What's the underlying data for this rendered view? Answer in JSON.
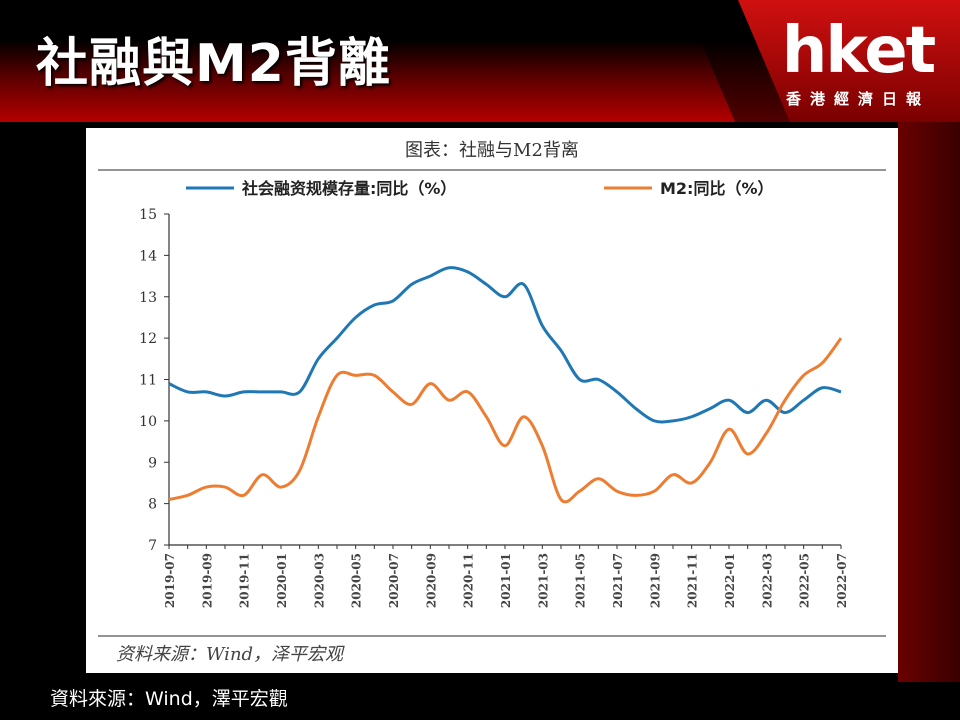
{
  "slide": {
    "title": "社融與M2背離",
    "source_caption": "資料來源：Wind，澤平宏觀"
  },
  "logo": {
    "wordmark": "hket",
    "subtitle": "香港經濟日報"
  },
  "colors": {
    "series_shrongzi": "#1f77b4",
    "series_m2": "#ed7d31",
    "title_bar_red": "#a00000",
    "accent_red": "#8b0000"
  },
  "chart_data": {
    "type": "line",
    "title": "图表：社融与M2背离",
    "source_note": "资料来源：Wind，泽平宏观",
    "ylim": [
      7,
      15
    ],
    "yticks": [
      7,
      8,
      9,
      10,
      11,
      12,
      13,
      14,
      15
    ],
    "xlim": [
      "2019-07",
      "2022-07"
    ],
    "x_tick_labels": [
      "2019-07",
      "2019-09",
      "2019-11",
      "2020-01",
      "2020-03",
      "2020-05",
      "2020-07",
      "2020-09",
      "2020-11",
      "2021-01",
      "2021-03",
      "2021-05",
      "2021-07",
      "2021-09",
      "2021-11",
      "2022-01",
      "2022-03",
      "2022-05",
      "2022-07"
    ],
    "legend_position": "top",
    "grid": false,
    "x": [
      "2019-07",
      "2019-08",
      "2019-09",
      "2019-10",
      "2019-11",
      "2019-12",
      "2020-01",
      "2020-02",
      "2020-03",
      "2020-04",
      "2020-05",
      "2020-06",
      "2020-07",
      "2020-08",
      "2020-09",
      "2020-10",
      "2020-11",
      "2020-12",
      "2021-01",
      "2021-02",
      "2021-03",
      "2021-04",
      "2021-05",
      "2021-06",
      "2021-07",
      "2021-08",
      "2021-09",
      "2021-10",
      "2021-11",
      "2021-12",
      "2022-01",
      "2022-02",
      "2022-03",
      "2022-04",
      "2022-05",
      "2022-06",
      "2022-07"
    ],
    "series": [
      {
        "name": "社会融资规模存量:同比（%）",
        "values": [
          10.9,
          10.7,
          10.7,
          10.6,
          10.7,
          10.7,
          10.7,
          10.7,
          11.5,
          12.0,
          12.5,
          12.8,
          12.9,
          13.3,
          13.5,
          13.7,
          13.6,
          13.3,
          13.0,
          13.3,
          12.3,
          11.7,
          11.0,
          11.0,
          10.7,
          10.3,
          10.0,
          10.0,
          10.1,
          10.3,
          10.5,
          10.2,
          10.5,
          10.2,
          10.5,
          10.8,
          10.7
        ]
      },
      {
        "name": "M2:同比（%）",
        "values": [
          8.1,
          8.2,
          8.4,
          8.4,
          8.2,
          8.7,
          8.4,
          8.8,
          10.1,
          11.1,
          11.1,
          11.1,
          10.7,
          10.4,
          10.9,
          10.5,
          10.7,
          10.1,
          9.4,
          10.1,
          9.4,
          8.1,
          8.3,
          8.6,
          8.3,
          8.2,
          8.3,
          8.7,
          8.5,
          9.0,
          9.8,
          9.2,
          9.7,
          10.5,
          11.1,
          11.4,
          12.0
        ]
      }
    ]
  }
}
